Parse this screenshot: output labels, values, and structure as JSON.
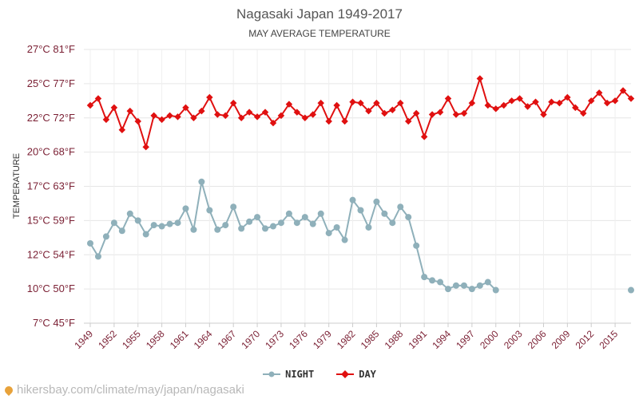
{
  "title": "Nagasaki Japan 1949-2017",
  "subtitle": "MAY AVERAGE TEMPERATURE",
  "source": "hikersbay.com/climate/may/japan/nagasaki",
  "colors": {
    "night": "#8fb0ba",
    "day": "#e01010",
    "grid": "#e6e6e6",
    "tick": "#7a1f33"
  },
  "chart_data": {
    "type": "line",
    "title": "Nagasaki Japan 1949-2017",
    "subtitle": "MAY AVERAGE TEMPERATURE",
    "ylabel": "TEMPERATURE",
    "ylim": [
      7,
      27
    ],
    "yticks": [
      {
        "value": 7,
        "label": "7°C 45°F"
      },
      {
        "value": 10,
        "label": "10°C 50°F"
      },
      {
        "value": 12,
        "label": "12°C 54°F"
      },
      {
        "value": 15,
        "label": "15°C 59°F"
      },
      {
        "value": 17,
        "label": "17°C 63°F"
      },
      {
        "value": 20,
        "label": "20°C 68°F"
      },
      {
        "value": 22,
        "label": "22°C 72°F"
      },
      {
        "value": 25,
        "label": "25°C 77°F"
      },
      {
        "value": 27,
        "label": "27°C 81°F"
      }
    ],
    "xlim": [
      1949,
      2017
    ],
    "xticks": [
      1949,
      1952,
      1955,
      1958,
      1961,
      1964,
      1967,
      1970,
      1973,
      1976,
      1979,
      1982,
      1985,
      1988,
      1991,
      1994,
      1997,
      2000,
      2003,
      2006,
      2009,
      2012,
      2015
    ],
    "legend": [
      "NIGHT",
      "DAY"
    ],
    "legend_position": "bottom",
    "grid": true,
    "series": [
      {
        "name": "NIGHT",
        "color": "#8fb0ba",
        "x": [
          1949,
          1950,
          1951,
          1952,
          1953,
          1954,
          1955,
          1956,
          1957,
          1958,
          1959,
          1960,
          1961,
          1962,
          1963,
          1964,
          1965,
          1966,
          1967,
          1968,
          1969,
          1970,
          1971,
          1972,
          1973,
          1974,
          1975,
          1976,
          1977,
          1978,
          1979,
          1980,
          1981,
          1982,
          1983,
          1984,
          1985,
          1986,
          1987,
          1988,
          1989,
          1990,
          1991,
          1992,
          1993,
          1994,
          1995,
          1996,
          1997,
          1998,
          1999,
          2000,
          2017
        ],
        "values": [
          13.0,
          11.9,
          13.6,
          14.8,
          14.1,
          15.4,
          15.0,
          13.8,
          14.6,
          14.5,
          14.7,
          14.8,
          15.7,
          14.2,
          17.4,
          15.6,
          14.2,
          14.6,
          15.8,
          14.3,
          14.9,
          15.2,
          14.3,
          14.5,
          14.8,
          15.4,
          14.8,
          15.2,
          14.7,
          15.4,
          13.9,
          14.4,
          13.3,
          16.2,
          15.6,
          14.4,
          16.1,
          15.4,
          14.8,
          15.8,
          15.2,
          12.8,
          10.7,
          10.5,
          10.4,
          10.0,
          10.2,
          10.2,
          10.0,
          10.2,
          10.4,
          9.9,
          9.9
        ]
      },
      {
        "name": "DAY",
        "color": "#e01010",
        "x": [
          1949,
          1950,
          1951,
          1952,
          1953,
          1954,
          1955,
          1956,
          1957,
          1958,
          1959,
          1960,
          1961,
          1962,
          1963,
          1964,
          1965,
          1966,
          1967,
          1968,
          1969,
          1970,
          1971,
          1972,
          1973,
          1974,
          1975,
          1976,
          1977,
          1978,
          1979,
          1980,
          1981,
          1982,
          1983,
          1984,
          1985,
          1986,
          1987,
          1988,
          1989,
          1990,
          1991,
          1992,
          1993,
          1994,
          1995,
          1996,
          1997,
          1998,
          1999,
          2000,
          2001,
          2002,
          2003,
          2004,
          2005,
          2006,
          2007,
          2008,
          2009,
          2010,
          2011,
          2012,
          2013,
          2014,
          2015,
          2016,
          2017
        ],
        "values": [
          23.1,
          23.7,
          21.9,
          22.9,
          21.3,
          22.6,
          21.8,
          20.3,
          22.2,
          21.9,
          22.2,
          22.1,
          22.9,
          22.0,
          22.6,
          23.8,
          22.3,
          22.2,
          23.3,
          22.0,
          22.5,
          22.1,
          22.5,
          21.7,
          22.2,
          23.2,
          22.5,
          22.0,
          22.3,
          23.3,
          21.8,
          23.1,
          21.8,
          23.4,
          23.3,
          22.6,
          23.3,
          22.4,
          22.7,
          23.3,
          21.8,
          22.4,
          20.9,
          22.3,
          22.5,
          23.7,
          22.3,
          22.4,
          23.3,
          25.3,
          23.1,
          22.8,
          23.1,
          23.5,
          23.7,
          23.0,
          23.4,
          22.3,
          23.4,
          23.3,
          23.8,
          22.9,
          22.4,
          23.5,
          24.2,
          23.3,
          23.5,
          24.4,
          23.7
        ]
      }
    ]
  }
}
